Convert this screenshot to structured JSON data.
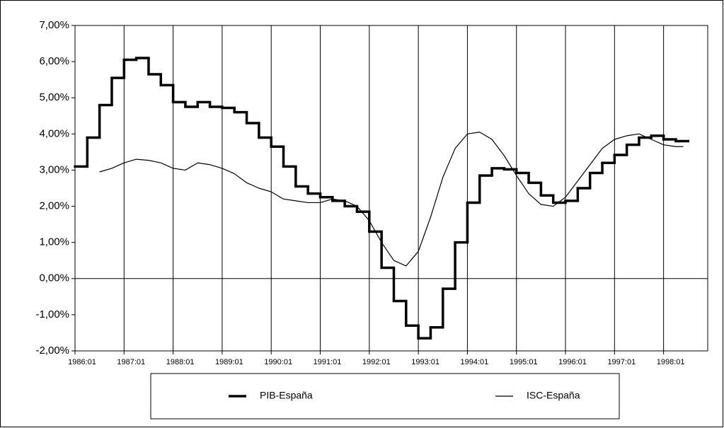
{
  "chart_data": {
    "type": "line",
    "xlim": [
      1986,
      1998.9
    ],
    "xticks": [
      {
        "value": 1986,
        "label": "1986:01"
      },
      {
        "value": 1987,
        "label": "1987:01"
      },
      {
        "value": 1988,
        "label": "1988:01"
      },
      {
        "value": 1989,
        "label": "1989:01"
      },
      {
        "value": 1990,
        "label": "1990:01"
      },
      {
        "value": 1991,
        "label": "1991:01"
      },
      {
        "value": 1992,
        "label": "1992:01"
      },
      {
        "value": 1993,
        "label": "1993:01"
      },
      {
        "value": 1994,
        "label": "1994:01"
      },
      {
        "value": 1995,
        "label": "1995:01"
      },
      {
        "value": 1996,
        "label": "1996:01"
      },
      {
        "value": 1997,
        "label": "1997:01"
      },
      {
        "value": 1998,
        "label": "1998:01"
      }
    ],
    "ylim": [
      -2,
      7
    ],
    "yticks": [
      {
        "value": -2,
        "label": "-2,00%"
      },
      {
        "value": -1,
        "label": "-1,00%"
      },
      {
        "value": 0,
        "label": "0,00%"
      },
      {
        "value": 1,
        "label": "1,00%"
      },
      {
        "value": 2,
        "label": "2,00%"
      },
      {
        "value": 3,
        "label": "3,00%"
      },
      {
        "value": 4,
        "label": "4,00%"
      },
      {
        "value": 5,
        "label": "5,00%"
      },
      {
        "value": 6,
        "label": "6,00%"
      },
      {
        "value": 7,
        "label": "7,00%"
      }
    ],
    "grid": "x",
    "legend": "bottom",
    "series": [
      {
        "name": "PIB-España",
        "color": "#000000",
        "step": true,
        "x": [
          1986,
          1986.25,
          1986.5,
          1986.75,
          1987,
          1987.25,
          1987.5,
          1987.75,
          1988,
          1988.25,
          1988.5,
          1988.75,
          1989,
          1989.25,
          1989.5,
          1989.75,
          1990,
          1990.25,
          1990.5,
          1990.75,
          1991,
          1991.25,
          1991.5,
          1991.75,
          1992,
          1992.25,
          1992.5,
          1992.75,
          1993,
          1993.25,
          1993.5,
          1993.75,
          1994,
          1994.25,
          1994.5,
          1994.75,
          1995,
          1995.25,
          1995.5,
          1995.75,
          1996,
          1996.25,
          1996.5,
          1996.75,
          1997,
          1997.25,
          1997.5,
          1997.75,
          1998,
          1998.25
        ],
        "values": [
          3.1,
          3.9,
          4.8,
          5.55,
          6.05,
          6.1,
          5.65,
          5.35,
          4.88,
          4.75,
          4.88,
          4.75,
          4.72,
          4.6,
          4.3,
          3.9,
          3.65,
          3.1,
          2.55,
          2.35,
          2.25,
          2.15,
          2.0,
          1.85,
          1.3,
          0.3,
          -0.62,
          -1.3,
          -1.65,
          -1.35,
          -0.28,
          1.0,
          2.1,
          2.85,
          3.05,
          3.02,
          2.92,
          2.65,
          2.3,
          2.1,
          2.15,
          2.5,
          2.92,
          3.2,
          3.42,
          3.7,
          3.9,
          3.95,
          3.85,
          3.8
        ]
      },
      {
        "name": "ISC-España",
        "color": "#000000",
        "x": [
          1986.5,
          1986.75,
          1987,
          1987.25,
          1987.5,
          1987.75,
          1988,
          1988.25,
          1988.5,
          1988.75,
          1989,
          1989.25,
          1989.5,
          1989.75,
          1990,
          1990.25,
          1990.5,
          1990.75,
          1991,
          1991.25,
          1991.5,
          1991.75,
          1992,
          1992.25,
          1992.5,
          1992.75,
          1993,
          1993.25,
          1993.5,
          1993.75,
          1994,
          1994.25,
          1994.5,
          1994.75,
          1995,
          1995.25,
          1995.5,
          1995.75,
          1996,
          1996.25,
          1996.5,
          1996.75,
          1997,
          1997.25,
          1997.5,
          1997.75,
          1998,
          1998.25,
          1998.4
        ],
        "values": [
          2.95,
          3.05,
          3.2,
          3.3,
          3.27,
          3.2,
          3.05,
          3.0,
          3.2,
          3.15,
          3.05,
          2.9,
          2.65,
          2.5,
          2.4,
          2.2,
          2.15,
          2.1,
          2.1,
          2.2,
          2.15,
          2.0,
          1.6,
          1.0,
          0.5,
          0.35,
          0.75,
          1.7,
          2.8,
          3.6,
          4.0,
          4.05,
          3.85,
          3.4,
          2.85,
          2.35,
          2.05,
          2.0,
          2.25,
          2.7,
          3.15,
          3.6,
          3.85,
          3.95,
          4.0,
          3.85,
          3.7,
          3.65,
          3.65
        ]
      }
    ]
  }
}
